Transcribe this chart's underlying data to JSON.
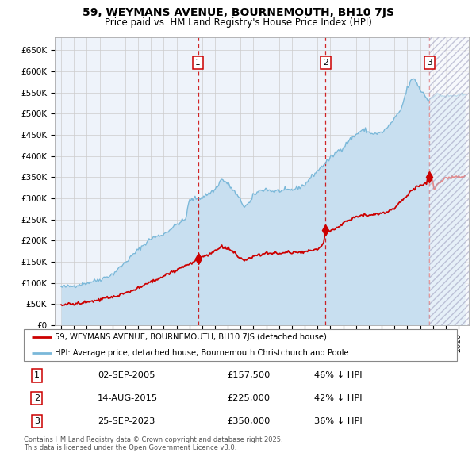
{
  "title1": "59, WEYMANS AVENUE, BOURNEMOUTH, BH10 7JS",
  "title2": "Price paid vs. HM Land Registry's House Price Index (HPI)",
  "ylabel_ticks": [
    "£0",
    "£50K",
    "£100K",
    "£150K",
    "£200K",
    "£250K",
    "£300K",
    "£350K",
    "£400K",
    "£450K",
    "£500K",
    "£550K",
    "£600K",
    "£650K"
  ],
  "ytick_values": [
    0,
    50000,
    100000,
    150000,
    200000,
    250000,
    300000,
    350000,
    400000,
    450000,
    500000,
    550000,
    600000,
    650000
  ],
  "xmin": 1994.5,
  "xmax": 2026.8,
  "ymin": 0,
  "ymax": 680000,
  "sale_dates": [
    2005.67,
    2015.62,
    2023.73
  ],
  "sale_prices": [
    157500,
    225000,
    350000
  ],
  "sale_labels": [
    "1",
    "2",
    "3"
  ],
  "hpi_color": "#7ab8d9",
  "hpi_fill_color": "#c8dff0",
  "price_color": "#cc0000",
  "marker_color": "#cc0000",
  "vline_color": "#cc0000",
  "grid_color": "#cccccc",
  "bg_color": "#eef3fa",
  "legend_line1": "59, WEYMANS AVENUE, BOURNEMOUTH, BH10 7JS (detached house)",
  "legend_line2": "HPI: Average price, detached house, Bournemouth Christchurch and Poole",
  "table_rows": [
    [
      "1",
      "02-SEP-2005",
      "£157,500",
      "46% ↓ HPI"
    ],
    [
      "2",
      "14-AUG-2015",
      "£225,000",
      "42% ↓ HPI"
    ],
    [
      "3",
      "25-SEP-2023",
      "£350,000",
      "36% ↓ HPI"
    ]
  ],
  "footnote": "Contains HM Land Registry data © Crown copyright and database right 2025.\nThis data is licensed under the Open Government Licence v3.0.",
  "hatch_x_start": 2023.73
}
